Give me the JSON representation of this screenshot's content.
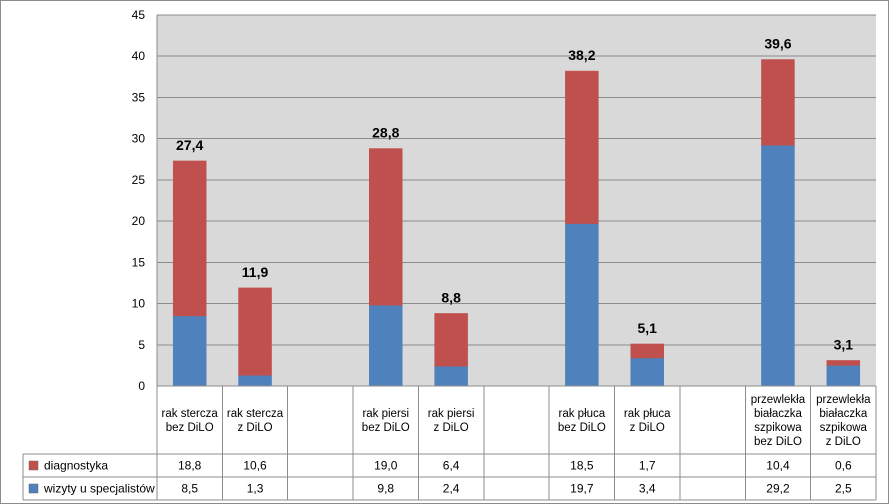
{
  "chart_data": {
    "type": "bar",
    "stacked": true,
    "ylim": [
      0,
      45
    ],
    "ytick_step": 5,
    "grid": true,
    "categories": [
      [
        "rak stercza",
        "bez DiLO"
      ],
      [
        "rak stercza",
        "z DiLO"
      ],
      [],
      [
        "rak piersi",
        "bez DiLO"
      ],
      [
        "rak piersi",
        "z DiLO"
      ],
      [],
      [
        "rak płuca",
        "bez DiLO"
      ],
      [
        "rak płuca",
        " z  DiLO"
      ],
      [],
      [
        "przewlekła",
        "białaczka",
        "szpikowa",
        "bez DiLO"
      ],
      [
        "przewlekła",
        "białaczka",
        "szpikowa",
        "z DiLO"
      ]
    ],
    "series": [
      {
        "name": "wizyty u specjalistów",
        "color": "#4f81bd",
        "values": [
          8.5,
          1.3,
          null,
          9.8,
          2.4,
          null,
          19.7,
          3.4,
          null,
          29.2,
          2.5
        ],
        "labels": [
          "8,5",
          "1,3",
          "",
          "9,8",
          "2,4",
          "",
          "19,7",
          "3,4",
          "",
          "29,2",
          "2,5"
        ]
      },
      {
        "name": "diagnostyka",
        "color": "#c0504d",
        "values": [
          18.8,
          10.6,
          null,
          19.0,
          6.4,
          null,
          18.5,
          1.7,
          null,
          10.4,
          0.6
        ],
        "labels": [
          "18,8",
          "10,6",
          "",
          "19,0",
          "6,4",
          "",
          "18,5",
          "1,7",
          "",
          "10,4",
          "0,6"
        ]
      }
    ],
    "totals": [
      "27,4",
      "11,9",
      "",
      "28,8",
      "8,8",
      "",
      "38,2",
      "5,1",
      "",
      "39,6",
      "3,1"
    ],
    "table_rows_order": [
      "diagnostyka",
      "wizyty u specjalistów"
    ],
    "colors": {
      "plot_background": "#d9d9d9",
      "gridline": "#8c8c8c",
      "border": "#8c8c8c"
    }
  }
}
